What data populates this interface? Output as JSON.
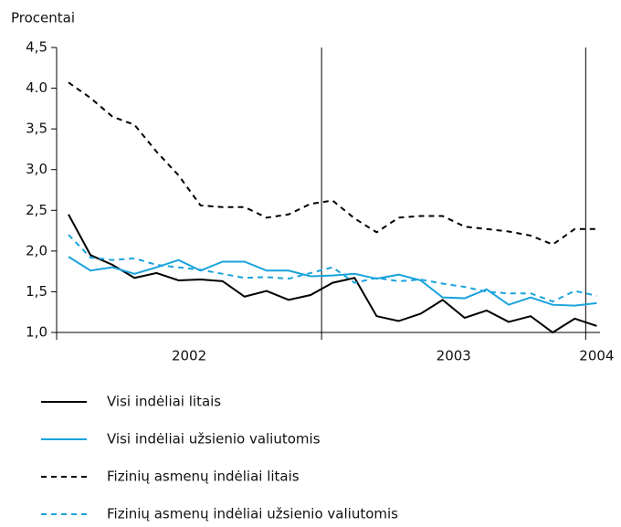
{
  "chart_data": {
    "type": "line",
    "y_label": "Procentai",
    "categories": [
      null,
      null,
      null,
      null,
      null,
      null,
      null,
      null,
      null,
      null,
      null,
      null,
      null,
      null,
      null,
      null,
      null,
      null,
      null,
      null,
      null,
      null,
      null,
      null,
      null
    ],
    "year_labels": [
      "2002",
      "2003",
      "2004"
    ],
    "ylim": [
      1,
      4.5
    ],
    "yticks": [
      {
        "value": 1,
        "label": "1,0"
      },
      {
        "value": 1.5,
        "label": "1,5"
      },
      {
        "value": 2,
        "label": "2,0"
      },
      {
        "value": 2.5,
        "label": "2,5"
      },
      {
        "value": 3,
        "label": "3,0"
      },
      {
        "value": 3.5,
        "label": "3,5"
      },
      {
        "value": 4,
        "label": "4.0"
      },
      {
        "value": 4.5,
        "label": "4,5"
      }
    ],
    "series": [
      {
        "name": "Visi indėliai litais",
        "color": "#000000",
        "dash": false,
        "values": [
          2.45,
          1.95,
          1.83,
          1.67,
          1.73,
          1.64,
          1.65,
          1.63,
          1.44,
          1.51,
          1.4,
          1.46,
          1.61,
          1.67,
          1.2,
          1.14,
          1.23,
          1.4,
          1.18,
          1.27,
          1.13,
          1.2,
          1.0,
          1.17,
          1.08
        ]
      },
      {
        "name": "Visi indėliai užsienio valiutomis",
        "color": "#1aa3dc",
        "dash": false,
        "values": [
          1.93,
          1.76,
          1.8,
          1.72,
          1.8,
          1.89,
          1.76,
          1.87,
          1.87,
          1.76,
          1.76,
          1.69,
          1.7,
          1.72,
          1.66,
          1.71,
          1.64,
          1.43,
          1.42,
          1.53,
          1.34,
          1.43,
          1.34,
          1.33,
          1.36
        ]
      },
      {
        "name": "Fizinių asmenų indėliai litais",
        "color": "#000000",
        "dash": true,
        "values": [
          4.07,
          3.88,
          3.65,
          3.55,
          3.22,
          2.93,
          2.56,
          2.54,
          2.54,
          2.41,
          2.45,
          2.58,
          2.62,
          2.4,
          2.23,
          2.41,
          2.43,
          2.43,
          2.3,
          2.27,
          2.24,
          2.19,
          2.08,
          2.27,
          2.27
        ]
      },
      {
        "name": "Fizinių asmenų indėliai užsienio valiutomis",
        "color": "#1aa3dc",
        "dash": true,
        "values": [
          2.2,
          1.92,
          1.89,
          1.91,
          1.83,
          1.8,
          1.77,
          1.72,
          1.67,
          1.68,
          1.66,
          1.73,
          1.8,
          1.61,
          1.67,
          1.63,
          1.65,
          1.6,
          1.56,
          1.5,
          1.48,
          1.48,
          1.38,
          1.51,
          1.45
        ]
      }
    ]
  }
}
